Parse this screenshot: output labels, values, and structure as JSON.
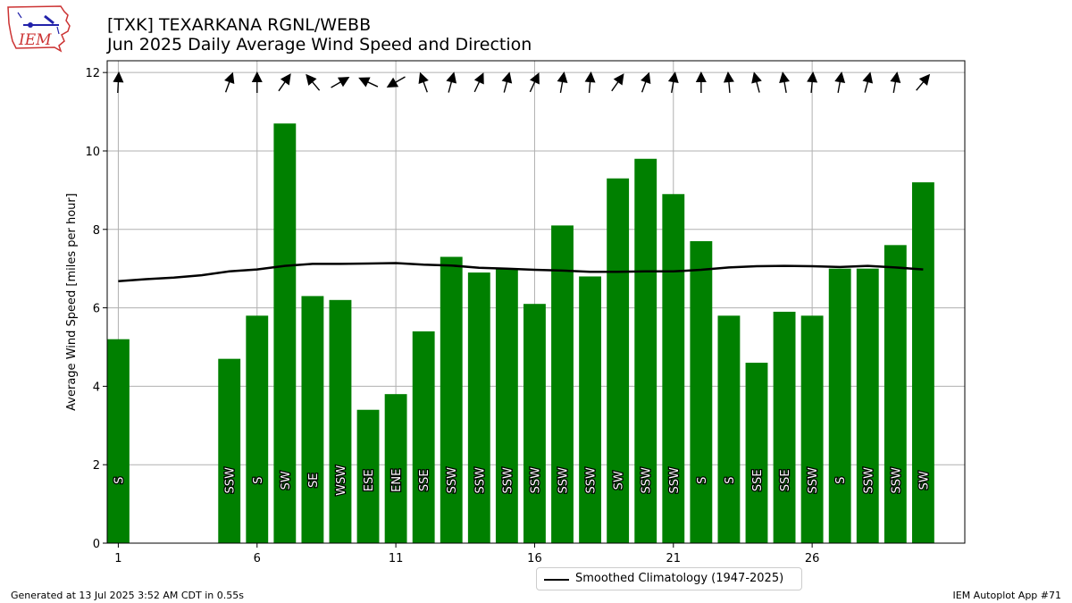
{
  "header": {
    "title_line1": "[TXK] TEXARKANA RGNL/WEBB",
    "title_line2": "Jun 2025 Daily Average Wind Speed and Direction"
  },
  "logo": {
    "text": "IEM",
    "icon": "iowa-state-map-logo"
  },
  "footer": {
    "generated": "Generated at 13 Jul 2025 3:52 AM CDT in 0.55s",
    "app": "IEM Autoplot App #71"
  },
  "legend": {
    "label": "Smoothed Climatology (1947-2025)"
  },
  "colors": {
    "bar": "#008000",
    "climatology": "#000000",
    "grid": "#b0b0b0",
    "arrow": "#000000"
  },
  "chart_data": {
    "type": "bar",
    "ylabel": "Average Wind Speed [miles per hour]",
    "xlabel": "",
    "ylim": [
      0,
      12.3
    ],
    "xlim": [
      0.6,
      31.5
    ],
    "yticks": [
      0,
      2,
      4,
      6,
      8,
      10,
      12
    ],
    "xticks": [
      1,
      6,
      11,
      16,
      21,
      26
    ],
    "grid": true,
    "legend_position": "bottom-center",
    "days": [
      1,
      5,
      6,
      7,
      8,
      9,
      10,
      11,
      12,
      13,
      14,
      15,
      16,
      17,
      18,
      19,
      20,
      21,
      22,
      23,
      24,
      25,
      26,
      27,
      28,
      29,
      30
    ],
    "values": [
      5.2,
      4.7,
      5.8,
      10.7,
      6.3,
      6.2,
      3.4,
      3.8,
      5.4,
      7.3,
      6.9,
      7.0,
      6.1,
      8.1,
      6.8,
      9.3,
      9.8,
      8.9,
      7.7,
      5.8,
      4.6,
      5.9,
      5.8,
      7.0,
      7.0,
      7.6,
      9.2
    ],
    "directions": [
      "S",
      "SSW",
      "S",
      "SW",
      "SE",
      "WSW",
      "ESE",
      "ENE",
      "SSE",
      "SSW",
      "SSW",
      "SSW",
      "SSW",
      "SSW",
      "SSW",
      "SW",
      "SSW",
      "SSW",
      "S",
      "S",
      "SSE",
      "SSE",
      "SSW",
      "S",
      "SSW",
      "SSW",
      "SW"
    ],
    "direction_degrees": [
      183,
      200,
      180,
      215,
      140,
      240,
      115,
      60,
      160,
      195,
      205,
      195,
      205,
      190,
      185,
      215,
      200,
      190,
      180,
      175,
      165,
      170,
      185,
      190,
      195,
      190,
      220
    ],
    "climatology": {
      "name": "Smoothed Climatology (1947-2025)",
      "x": [
        1,
        2,
        3,
        4,
        5,
        6,
        7,
        8,
        9,
        10,
        11,
        12,
        13,
        14,
        15,
        16,
        17,
        18,
        19,
        20,
        21,
        22,
        23,
        24,
        25,
        26,
        27,
        28,
        29,
        30
      ],
      "y": [
        6.68,
        6.73,
        6.77,
        6.83,
        6.93,
        6.98,
        7.07,
        7.12,
        7.12,
        7.13,
        7.14,
        7.1,
        7.08,
        7.02,
        7.0,
        6.97,
        6.95,
        6.92,
        6.92,
        6.93,
        6.93,
        6.97,
        7.03,
        7.06,
        7.07,
        7.06,
        7.04,
        7.07,
        7.03,
        6.98
      ]
    }
  }
}
